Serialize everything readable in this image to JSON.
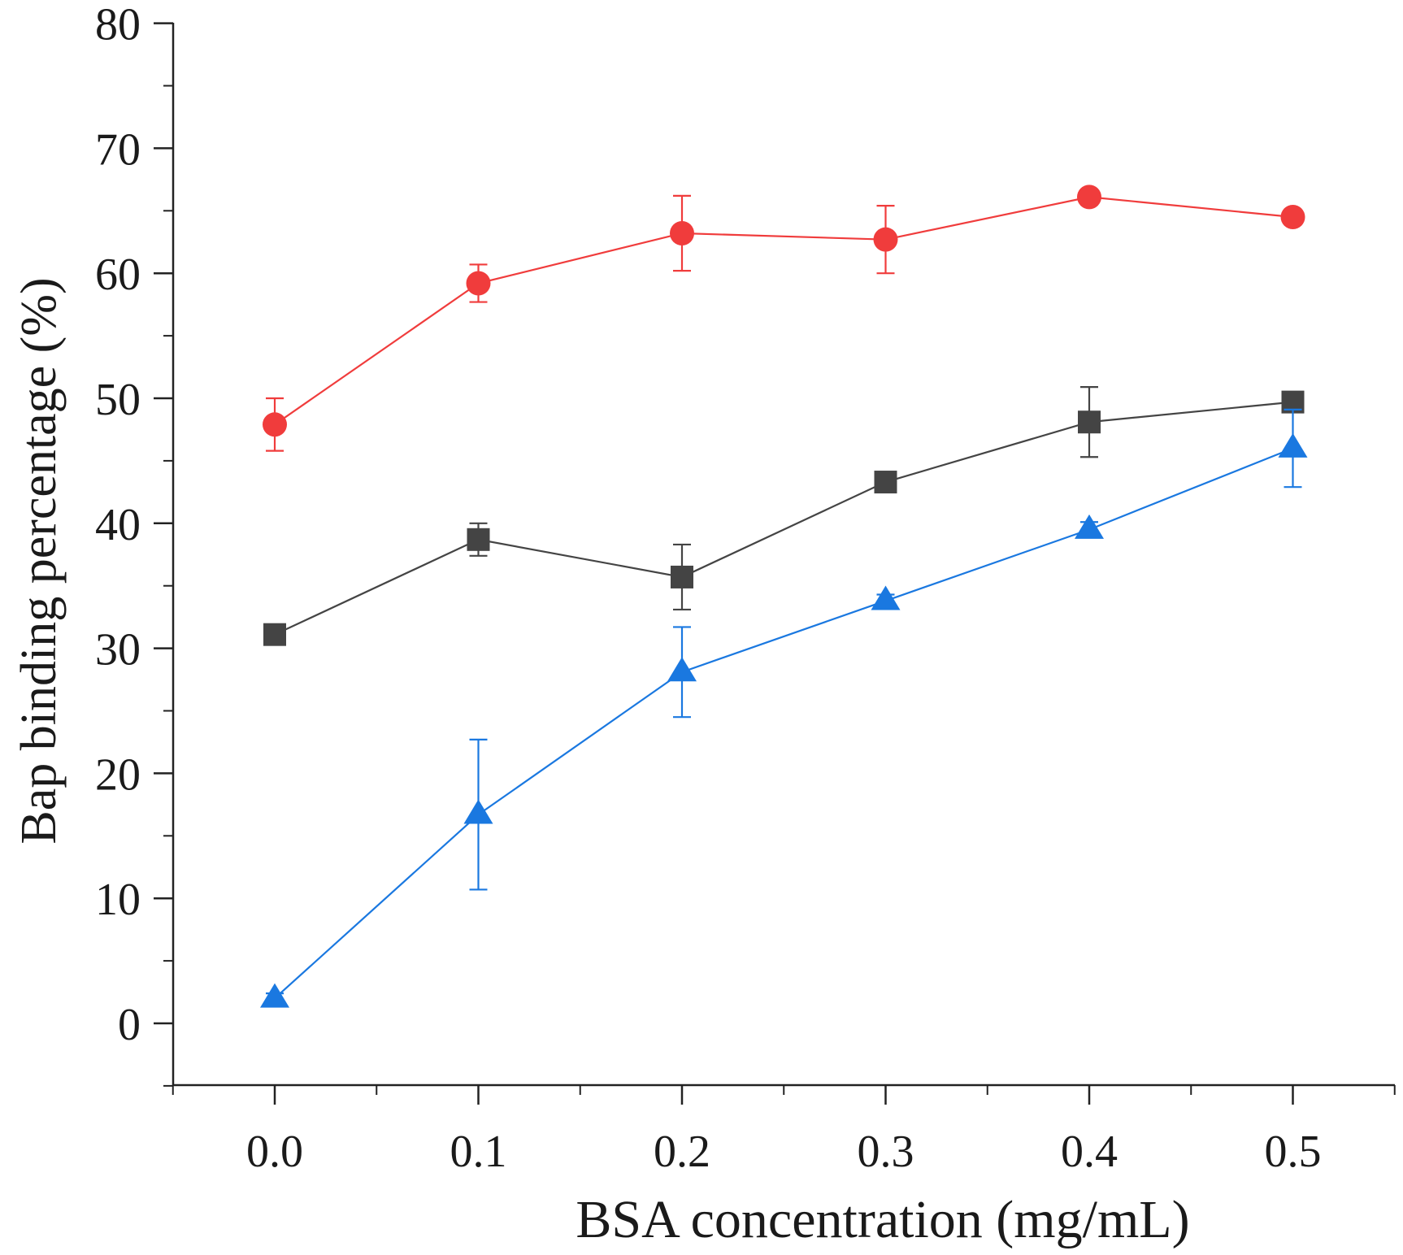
{
  "chart_data": {
    "type": "line",
    "title": "",
    "xlabel": "BSA concentration (mg/mL)",
    "ylabel": "Bap binding percentage (%)",
    "xlim": [
      -0.05,
      0.55
    ],
    "ylim": [
      -5,
      80
    ],
    "x": [
      0.0,
      0.1,
      0.2,
      0.3,
      0.4,
      0.5
    ],
    "x_tick_labels": [
      "0.0",
      "0.1",
      "0.2",
      "0.3",
      "0.4",
      "0.5"
    ],
    "y_ticks": [
      0,
      10,
      20,
      30,
      40,
      50,
      60,
      70,
      80
    ],
    "y_tick_labels": [
      "0",
      "10",
      "20",
      "30",
      "40",
      "50",
      "60",
      "70",
      "80"
    ],
    "grid": false,
    "legend": "none",
    "series": [
      {
        "name": "red circles",
        "color": "#f03c3c",
        "marker": "circle",
        "values": [
          47.9,
          59.2,
          63.2,
          62.7,
          66.1,
          64.5
        ],
        "errors": [
          2.1,
          1.5,
          3.0,
          2.7,
          0.6,
          0.6
        ]
      },
      {
        "name": "gray squares",
        "color": "#444444",
        "marker": "square",
        "values": [
          31.1,
          38.7,
          35.7,
          43.3,
          48.1,
          49.7
        ],
        "errors": [
          0.4,
          1.3,
          2.6,
          0.4,
          2.8,
          0.5
        ]
      },
      {
        "name": "blue triangles",
        "color": "#1a78e0",
        "marker": "triangle",
        "values": [
          2.0,
          16.7,
          28.1,
          33.8,
          39.5,
          46.0
        ],
        "errors": [
          0.4,
          6.0,
          3.6,
          0.5,
          0.6,
          3.1
        ]
      }
    ]
  }
}
